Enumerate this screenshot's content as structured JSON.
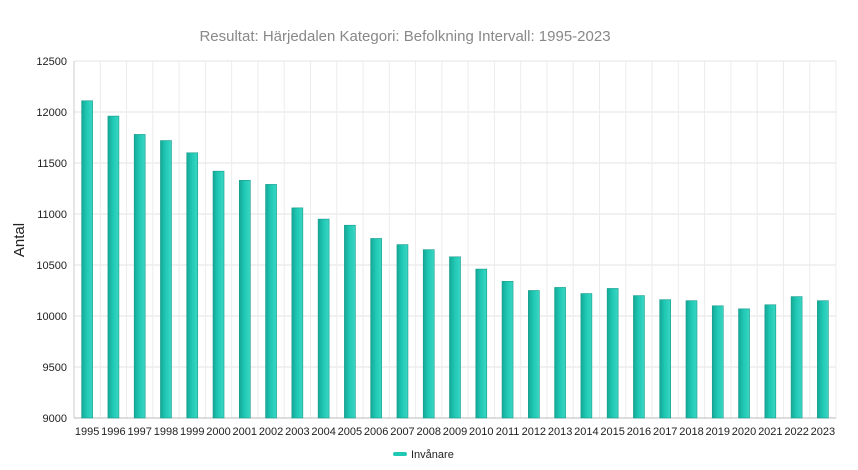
{
  "chart_data": {
    "type": "bar",
    "title": "Resultat: Härjedalen Kategori: Befolkning Intervall: 1995-2023",
    "xlabel": "",
    "ylabel": "Antal",
    "ylim": [
      9000,
      12500
    ],
    "yticks": [
      9000,
      9500,
      10000,
      10500,
      11000,
      11500,
      12000,
      12500
    ],
    "grid": true,
    "legend_position": "bottom-center",
    "categories": [
      "1995",
      "1996",
      "1997",
      "1998",
      "1999",
      "2000",
      "2001",
      "2002",
      "2003",
      "2004",
      "2005",
      "2006",
      "2007",
      "2008",
      "2009",
      "2010",
      "2011",
      "2012",
      "2013",
      "2014",
      "2015",
      "2016",
      "2017",
      "2018",
      "2019",
      "2020",
      "2021",
      "2022",
      "2023"
    ],
    "series": [
      {
        "name": "Invånare",
        "color": "#1fc8b4",
        "values": [
          12110,
          11960,
          11780,
          11720,
          11600,
          11420,
          11330,
          11290,
          11060,
          10950,
          10890,
          10760,
          10700,
          10650,
          10580,
          10460,
          10340,
          10250,
          10280,
          10220,
          10270,
          10200,
          10160,
          10150,
          10100,
          10070,
          10110,
          10190,
          10150
        ]
      }
    ]
  }
}
